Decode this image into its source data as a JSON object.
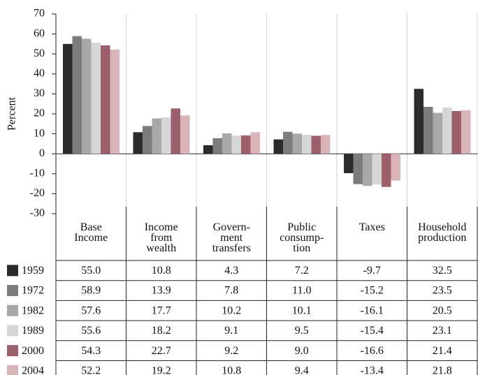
{
  "chart_data": {
    "type": "bar",
    "y_label": "Percent",
    "categories": [
      "Base\nIncome",
      "Income\nfrom\nwealth",
      "Govern-\nment\ntransfers",
      "Public\nconsump-\ntion",
      "Taxes",
      "Household\nproduction"
    ],
    "ylim": [
      -30,
      70
    ],
    "yticks": [
      -30,
      -20,
      -10,
      0,
      10,
      20,
      30,
      40,
      50,
      60,
      70
    ],
    "grid": true,
    "series": [
      {
        "name": "1959",
        "color": "#2b2b2b",
        "values": [
          55.0,
          10.8,
          4.3,
          7.2,
          -9.7,
          32.5
        ],
        "value_labels": [
          "55.0",
          "10.8",
          "4.3",
          "7.2",
          "-9.7",
          "32.5"
        ]
      },
      {
        "name": "1972",
        "color": "#7c7c7c",
        "values": [
          58.9,
          13.9,
          7.8,
          11.0,
          -15.2,
          23.5
        ],
        "value_labels": [
          "58.9",
          "13.9",
          "7.8",
          "11.0",
          "-15.2",
          "23.5"
        ]
      },
      {
        "name": "1982",
        "color": "#a8a8a8",
        "values": [
          57.6,
          17.7,
          10.2,
          10.1,
          -16.1,
          20.5
        ],
        "value_labels": [
          "57.6",
          "17.7",
          "10.2",
          "10.1",
          "-16.1",
          "20.5"
        ]
      },
      {
        "name": "1989",
        "color": "#d6d6d6",
        "values": [
          55.6,
          18.2,
          9.1,
          9.5,
          -15.4,
          23.1
        ],
        "value_labels": [
          "55.6",
          "18.2",
          "9.1",
          "9.5",
          "-15.4",
          "23.1"
        ]
      },
      {
        "name": "2000",
        "color": "#9c5f6c",
        "values": [
          54.3,
          22.7,
          9.2,
          9.0,
          -16.6,
          21.4
        ],
        "value_labels": [
          "54.3",
          "22.7",
          "9.2",
          "9.0",
          "-16.6",
          "21.4"
        ]
      },
      {
        "name": "2004",
        "color": "#d8b4b9",
        "values": [
          52.2,
          19.2,
          10.8,
          9.4,
          -13.4,
          21.8
        ],
        "value_labels": [
          "52.2",
          "19.2",
          "10.8",
          "9.4",
          "-13.4",
          "21.8"
        ]
      }
    ]
  }
}
